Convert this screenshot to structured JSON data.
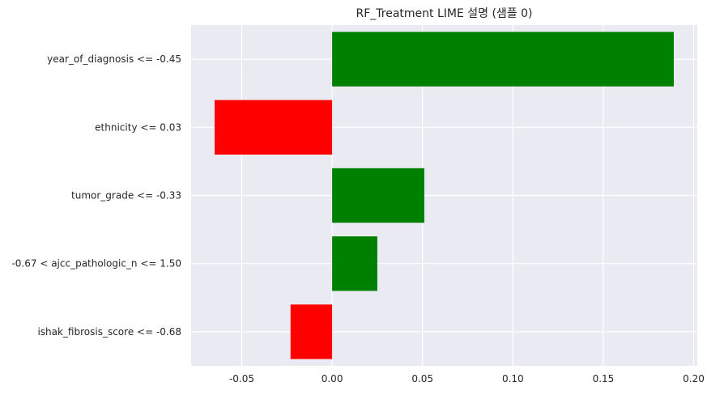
{
  "chart_data": {
    "type": "bar",
    "orientation": "horizontal",
    "title": "RF_Treatment LIME 설명 (샘플 0)",
    "xlabel": "",
    "ylabel": "",
    "categories": [
      "year_of_diagnosis <= -0.45",
      "ethnicity <= 0.03",
      "tumor_grade <= -0.33",
      "-0.67 < ajcc_pathologic_n <= 1.50",
      "ishak_fibrosis_score <= -0.68"
    ],
    "values": [
      0.189,
      -0.065,
      0.051,
      0.025,
      -0.023
    ],
    "xlim": [
      -0.078,
      0.202
    ],
    "xticks": [
      -0.05,
      0.0,
      0.05,
      0.1,
      0.15,
      0.2
    ],
    "xtick_labels": [
      "-0.05",
      "0.00",
      "0.05",
      "0.10",
      "0.15",
      "0.20"
    ],
    "grid": true,
    "colors": {
      "positive": "#008000",
      "negative": "#ff0000",
      "background": "#eaeaf2",
      "grid": "#ffffff"
    }
  }
}
